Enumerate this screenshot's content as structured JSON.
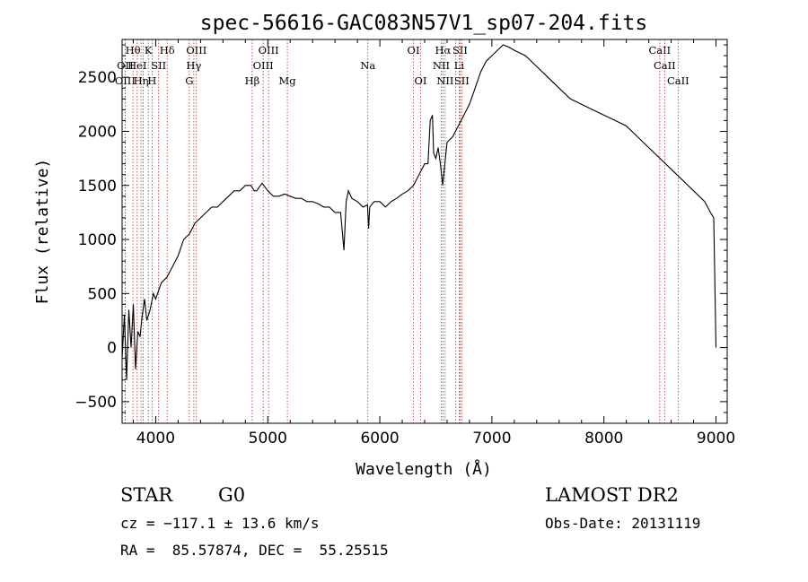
{
  "chart_data": {
    "type": "line",
    "title": "spec-56616-GAC083N57V1_sp07-204.fits",
    "xlabel": "Wavelength (Å)",
    "ylabel": "Flux (relative)",
    "xlim": [
      3700,
      9100
    ],
    "ylim": [
      -700,
      2850
    ],
    "xticks": [
      4000,
      5000,
      6000,
      7000,
      8000,
      9000
    ],
    "yticks": [
      -500,
      0,
      500,
      1000,
      1500,
      2000,
      2500
    ],
    "grid": false,
    "series": [
      {
        "x": [
          3700,
          3720,
          3740,
          3760,
          3780,
          3800,
          3820,
          3840,
          3860,
          3880,
          3900,
          3920,
          3950,
          3980,
          4000,
          4050,
          4100,
          4150,
          4200,
          4250,
          4300,
          4350,
          4400,
          4450,
          4500,
          4550,
          4600,
          4650,
          4700,
          4750,
          4800,
          4850,
          4880,
          4900,
          4950,
          5000,
          5050,
          5100,
          5150,
          5200,
          5250,
          5300,
          5350,
          5400,
          5450,
          5500,
          5550,
          5600,
          5650,
          5680,
          5700,
          5720,
          5750,
          5800,
          5850,
          5890,
          5900,
          5910,
          5950,
          6000,
          6050,
          6100,
          6150,
          6200,
          6250,
          6300,
          6350,
          6400,
          6430,
          6450,
          6470,
          6480,
          6500,
          6520,
          6540,
          6562,
          6580,
          6600,
          6650,
          6700,
          6750,
          6800,
          6850,
          6900,
          6950,
          7000,
          7050,
          7100,
          7150,
          7200,
          7300,
          7400,
          7500,
          7600,
          7700,
          7800,
          7900,
          8000,
          8100,
          8200,
          8300,
          8400,
          8500,
          8600,
          8700,
          8800,
          8900,
          8950,
          8980,
          9000
        ],
        "y": [
          -100,
          300,
          -300,
          350,
          0,
          400,
          -200,
          150,
          100,
          300,
          450,
          250,
          350,
          500,
          450,
          600,
          650,
          750,
          850,
          1000,
          1050,
          1150,
          1200,
          1250,
          1300,
          1300,
          1350,
          1400,
          1450,
          1450,
          1500,
          1500,
          1450,
          1450,
          1520,
          1450,
          1400,
          1400,
          1420,
          1400,
          1380,
          1380,
          1350,
          1350,
          1330,
          1300,
          1300,
          1250,
          1250,
          900,
          1350,
          1450,
          1380,
          1350,
          1300,
          1320,
          1100,
          1300,
          1350,
          1350,
          1300,
          1350,
          1380,
          1420,
          1450,
          1500,
          1600,
          1700,
          1700,
          2100,
          2150,
          1800,
          1750,
          1850,
          1700,
          1500,
          1700,
          1900,
          1950,
          2050,
          2150,
          2250,
          2400,
          2550,
          2650,
          2700,
          2750,
          2800,
          2780,
          2750,
          2700,
          2600,
          2500,
          2400,
          2300,
          2250,
          2200,
          2150,
          2100,
          2050,
          1950,
          1850,
          1750,
          1650,
          1550,
          1450,
          1350,
          1250,
          1200,
          0
        ]
      }
    ],
    "lines": [
      {
        "x": 3727,
        "label": "OII",
        "row": 1
      },
      {
        "x": 3727,
        "label": "OIII",
        "row": 2
      },
      {
        "x": 3797,
        "label": "Hθ",
        "row": 0
      },
      {
        "x": 3835,
        "label": "HeI",
        "row": 1
      },
      {
        "x": 3869,
        "label": "Hη",
        "row": 2
      },
      {
        "x": 3889,
        "label": "",
        "row": 0
      },
      {
        "x": 3934,
        "label": "K",
        "row": 0
      },
      {
        "x": 3968,
        "label": "H",
        "row": 2
      },
      {
        "x": 4026,
        "label": "SII",
        "row": 1
      },
      {
        "x": 4102,
        "label": "Hδ",
        "row": 0
      },
      {
        "x": 4300,
        "label": "G",
        "row": 2
      },
      {
        "x": 4340,
        "label": "Hγ",
        "row": 1
      },
      {
        "x": 4363,
        "label": "OIII",
        "row": 0
      },
      {
        "x": 4861,
        "label": "Hβ",
        "row": 2
      },
      {
        "x": 4959,
        "label": "OIII",
        "row": 1
      },
      {
        "x": 5007,
        "label": "OIII",
        "row": 0
      },
      {
        "x": 5175,
        "label": "Mg",
        "row": 2
      },
      {
        "x": 5893,
        "label": "Na",
        "row": 1
      },
      {
        "x": 6300,
        "label": "OI",
        "row": 0
      },
      {
        "x": 6364,
        "label": "OI",
        "row": 2
      },
      {
        "x": 6548,
        "label": "NII",
        "row": 1
      },
      {
        "x": 6563,
        "label": "Hα",
        "row": 0
      },
      {
        "x": 6583,
        "label": "NII",
        "row": 2
      },
      {
        "x": 6678,
        "label": "",
        "row": 0
      },
      {
        "x": 6716,
        "label": "SII",
        "row": 0
      },
      {
        "x": 6731,
        "label": "SII",
        "row": 2
      },
      {
        "x": 6708,
        "label": "Li",
        "row": 1
      },
      {
        "x": 8498,
        "label": "CaII",
        "row": 0
      },
      {
        "x": 8542,
        "label": "CaII",
        "row": 1
      },
      {
        "x": 8662,
        "label": "CaII",
        "row": 2
      }
    ]
  },
  "info": {
    "class": "STAR",
    "subclass": "G0",
    "survey": "LAMOST DR2",
    "redshift": "cz = −117.1 ± 13.6 km/s",
    "obsdate": "Obs-Date: 20131119",
    "coords": "RA =  85.57874, DEC =  55.25515"
  },
  "colors": {
    "line_marker": "#b03030",
    "spectrum": "#000000"
  }
}
